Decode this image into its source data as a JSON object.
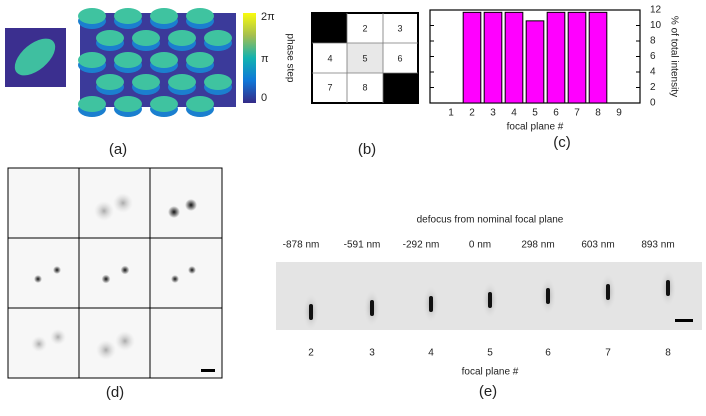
{
  "panel_a": {
    "label": "(a)",
    "colorbar": {
      "ticks": [
        "2π",
        "π",
        "0"
      ],
      "title": "phase step"
    }
  },
  "panel_b": {
    "label": "(b)",
    "cells": [
      "2",
      "3",
      "4",
      "5",
      "6",
      "7",
      "8"
    ]
  },
  "panel_c": {
    "label": "(c)"
  },
  "chart_data": {
    "type": "bar",
    "x_label": "focal plane #",
    "y_label": "% of total intensity",
    "categories": [
      "1",
      "2",
      "3",
      "4",
      "5",
      "6",
      "7",
      "8",
      "9"
    ],
    "values": [
      0,
      11.7,
      11.7,
      11.7,
      10.6,
      11.7,
      11.7,
      11.7,
      0
    ],
    "color": "#ff00ff",
    "ylim": [
      0,
      12
    ],
    "yticks": [
      0,
      2,
      4,
      6,
      8,
      10,
      12
    ]
  },
  "panel_d": {
    "label": "(d)"
  },
  "panel_e": {
    "label": "(e)",
    "title": "defocus from nominal focal plane",
    "defocus": [
      "-878 nm",
      "-591 nm",
      "-292 nm",
      "0 nm",
      "298 nm",
      "603 nm",
      "893 nm"
    ],
    "planes": [
      "2",
      "3",
      "4",
      "5",
      "6",
      "7",
      "8"
    ],
    "x_label": "focal plane #"
  }
}
